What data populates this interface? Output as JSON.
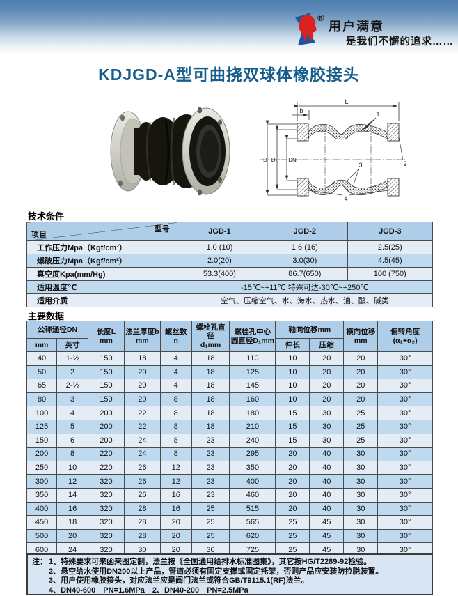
{
  "header": {
    "slogan_line1": "用户满意",
    "slogan_line2": "是我们不懈的追求……",
    "trademark": "®"
  },
  "title": "KDJGD-A型可曲挠双球体橡胶接头",
  "drawing_labels": {
    "length": "L",
    "flange_thickness": "b",
    "outer_dia": "D",
    "bolt_circle_dia": "D₁",
    "nominal_dia": "DN",
    "callout_1": "1",
    "callout_2": "2",
    "callout_3": "3",
    "callout_4": "4"
  },
  "tech_conditions": {
    "section_title": "技术条件",
    "corner_top": "型号",
    "corner_bottom": "项目",
    "model_columns": [
      "JGD-1",
      "JGD-2",
      "JGD-3"
    ],
    "rows": [
      {
        "label": "工作压力Mpa（Kgf/cm²）",
        "values": [
          "1.0 (10)",
          "1.6 (16)",
          "2.5(25)"
        ]
      },
      {
        "label": "爆破压力Mpa（Kgf/cm²）",
        "values": [
          "2.0(20)",
          "3.0(30)",
          "4.5(45)"
        ]
      },
      {
        "label": "真空度Kpa(mm/Hg)",
        "values": [
          "53.3(400)",
          "86.7(650)",
          "100 (750)"
        ]
      },
      {
        "label": "适用温度℃",
        "values": [
          "-15℃~+11℃  特殊可达-30℃~+250℃"
        ],
        "colspan": 3
      },
      {
        "label": "适用介质",
        "values": [
          "空气、压缩空气、水、海水、热水、油、酸、碱类"
        ],
        "colspan": 3
      }
    ]
  },
  "main_data": {
    "section_title": "主要数据",
    "header": {
      "dn_group": "公称通径DN",
      "dn_mm": "mm",
      "dn_inch": "英寸",
      "length": "长度L\nmm",
      "flange_thickness": "法兰厚度b\nmm",
      "bolt_count": "螺丝数\nn",
      "bolt_hole_dia": "螺栓孔直径\nd₁mm",
      "bolt_circle": "螺栓孔中心\n圆直径D₁mm",
      "axial_group": "轴向位移mm",
      "axial_extend": "伸长",
      "axial_compress": "压缩",
      "lateral": "横向位移\nmm",
      "deflection": "偏转角度\n(α₁+α₂)"
    },
    "rows": [
      [
        "40",
        "1-½",
        "150",
        "18",
        "4",
        "18",
        "110",
        "10",
        "20",
        "20",
        "30°"
      ],
      [
        "50",
        "2",
        "150",
        "20",
        "4",
        "18",
        "125",
        "10",
        "20",
        "20",
        "30°"
      ],
      [
        "65",
        "2-½",
        "150",
        "20",
        "4",
        "18",
        "145",
        "10",
        "20",
        "20",
        "30°"
      ],
      [
        "80",
        "3",
        "150",
        "20",
        "8",
        "18",
        "160",
        "10",
        "20",
        "20",
        "30°"
      ],
      [
        "100",
        "4",
        "200",
        "22",
        "8",
        "18",
        "180",
        "15",
        "30",
        "25",
        "30°"
      ],
      [
        "125",
        "5",
        "200",
        "22",
        "8",
        "18",
        "210",
        "15",
        "30",
        "25",
        "30°"
      ],
      [
        "150",
        "6",
        "200",
        "24",
        "8",
        "23",
        "240",
        "15",
        "30",
        "25",
        "30°"
      ],
      [
        "200",
        "8",
        "220",
        "24",
        "8",
        "23",
        "295",
        "20",
        "40",
        "30",
        "30°"
      ],
      [
        "250",
        "10",
        "220",
        "26",
        "12",
        "23",
        "350",
        "20",
        "40",
        "30",
        "30°"
      ],
      [
        "300",
        "12",
        "320",
        "26",
        "12",
        "23",
        "400",
        "20",
        "40",
        "30",
        "30°"
      ],
      [
        "350",
        "14",
        "320",
        "26",
        "16",
        "23",
        "460",
        "20",
        "40",
        "30",
        "30°"
      ],
      [
        "400",
        "16",
        "320",
        "28",
        "16",
        "25",
        "515",
        "20",
        "40",
        "30",
        "30°"
      ],
      [
        "450",
        "18",
        "320",
        "28",
        "20",
        "25",
        "565",
        "25",
        "45",
        "30",
        "30°"
      ],
      [
        "500",
        "20",
        "320",
        "28",
        "20",
        "25",
        "620",
        "25",
        "45",
        "30",
        "30°"
      ],
      [
        "600",
        "24",
        "320",
        "30",
        "20",
        "30",
        "725",
        "25",
        "45",
        "30",
        "30°"
      ]
    ]
  },
  "notes": {
    "prefix": "注：",
    "lines": [
      "1、特殊要求可来函来图定制，法兰按《全国通用给排水标准图集》，其它按HG/T2289-92检验。",
      "2、悬空给水使用DN200以上产品，管道必须有固定支撑或固定托架，否则产品应安装防拉脱装置。",
      "3、用户使用橡胶接头，对应法兰应是阀门法兰或符合GB/T9115.1(RF)法兰。",
      "4、DN40-600　PN=1.6MPa　2、DN40-200　PN=2.5MPa"
    ]
  },
  "colors": {
    "header_gradient_top": "#4e7daf",
    "title_color": "#175e8c",
    "table_header_bg": "#aecde8",
    "row_light": "#e4edf6",
    "row_blue": "#bfd9ee",
    "notes_bg": "#d8e5f2",
    "logo_blue": "#1457a5",
    "logo_red": "#d92320"
  }
}
